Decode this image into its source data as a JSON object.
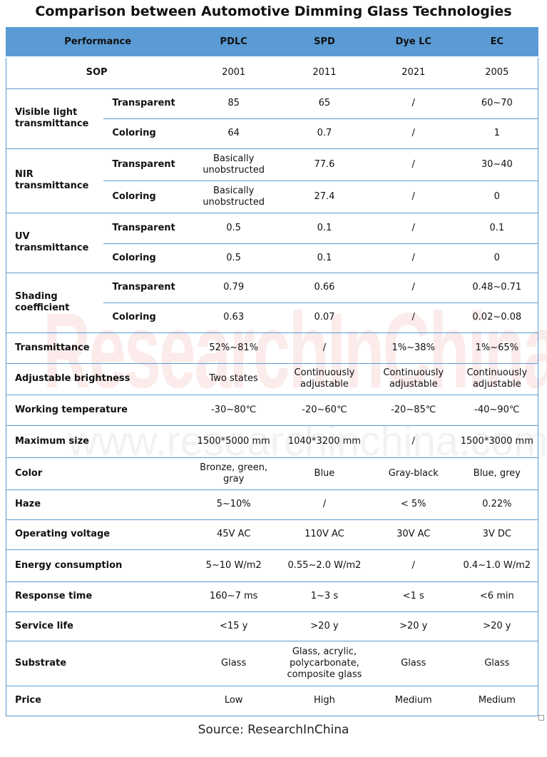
{
  "title": "Comparison between Automotive Dimming Glass Technologies",
  "watermark": {
    "logo": "ResearchInChina",
    "url": "www.researchinchina.com"
  },
  "header": [
    "Performance",
    "PDLC",
    "SPD",
    "Dye LC",
    "EC"
  ],
  "rows": [
    {
      "label": "SOP",
      "values": [
        "2001",
        "2011",
        "2021",
        "2005"
      ],
      "center": true,
      "h": 44
    },
    {
      "label": "Visible light transmittance",
      "sub": [
        {
          "label": "Transparent",
          "values": [
            "85",
            "65",
            "/",
            "60~70"
          ],
          "h": 42
        },
        {
          "label": "Coloring",
          "values": [
            "64",
            "0.7",
            "/",
            "1"
          ],
          "h": 42
        }
      ]
    },
    {
      "label": "NIR transmittance",
      "sub": [
        {
          "label": "Transparent",
          "values": [
            "Basically unobstructed",
            "77.6",
            "/",
            "30~40"
          ],
          "h": 45
        },
        {
          "label": "Coloring",
          "values": [
            "Basically unobstructed",
            "27.4",
            "/",
            "0"
          ],
          "h": 45
        }
      ]
    },
    {
      "label": "UV transmittance",
      "sub": [
        {
          "label": "Transparent",
          "values": [
            "0.5",
            "0.1",
            "/",
            "0.1"
          ],
          "h": 43
        },
        {
          "label": "Coloring",
          "values": [
            "0.5",
            "0.1",
            "/",
            "0"
          ],
          "h": 41
        }
      ]
    },
    {
      "label": "Shading coefficient",
      "sub": [
        {
          "label": "Transparent",
          "values": [
            "0.79",
            "0.66",
            "/",
            "0.48~0.71"
          ],
          "h": 42
        },
        {
          "label": "Coloring",
          "values": [
            "0.63",
            "0.07",
            "/",
            "0.02~0.08"
          ],
          "h": 42
        }
      ]
    },
    {
      "label": "Transmittance",
      "values": [
        "52%~81%",
        "/",
        "1%~38%",
        "1%~65%"
      ],
      "h": 43
    },
    {
      "label": "Adjustable brightness",
      "values": [
        "Two states",
        "Continuously adjustable",
        "Continuously adjustable",
        "Continuously adjustable"
      ],
      "h": 44
    },
    {
      "label": "Working temperature",
      "values": [
        "-30~80℃",
        "-20~60℃",
        "-20~85℃",
        "-40~90℃"
      ],
      "h": 43
    },
    {
      "label": "Maximum size",
      "values": [
        "1500*5000 mm",
        "1040*3200 mm",
        "/",
        "1500*3000 mm"
      ],
      "h": 45
    },
    {
      "label": "Color",
      "values": [
        "Bronze, green, gray",
        "Blue",
        "Gray-black",
        "Blue, grey"
      ],
      "h": 45
    },
    {
      "label": "Haze",
      "values": [
        "5~10%",
        "/",
        "< 5%",
        "0.22%"
      ],
      "h": 42
    },
    {
      "label": "Operating voltage",
      "values": [
        "45V AC",
        "110V AC",
        "30V AC",
        "3V DC"
      ],
      "h": 42
    },
    {
      "label": "Energy consumption",
      "values": [
        "5~10 W/m2",
        "0.55~2.0 W/m2",
        "/",
        "0.4~1.0 W/m2"
      ],
      "h": 45
    },
    {
      "label": "Response time",
      "values": [
        "160~7 ms",
        "1~3 s",
        "<1 s",
        "<6 min"
      ],
      "h": 42
    },
    {
      "label": "Service life",
      "values": [
        "<15 y",
        ">20 y",
        ">20 y",
        ">20 y"
      ],
      "h": 41
    },
    {
      "label": "Substrate",
      "values": [
        "Glass",
        "Glass, acrylic, polycarbonate, composite glass",
        "Glass",
        "Glass"
      ],
      "h": 63
    },
    {
      "label": "Price",
      "values": [
        "Low",
        "High",
        "Medium",
        "Medium"
      ],
      "h": 42
    }
  ],
  "source": "Source: ResearchInChina",
  "colors": {
    "header_bg": "#5b9bd5",
    "border": "#5b9bd5"
  }
}
